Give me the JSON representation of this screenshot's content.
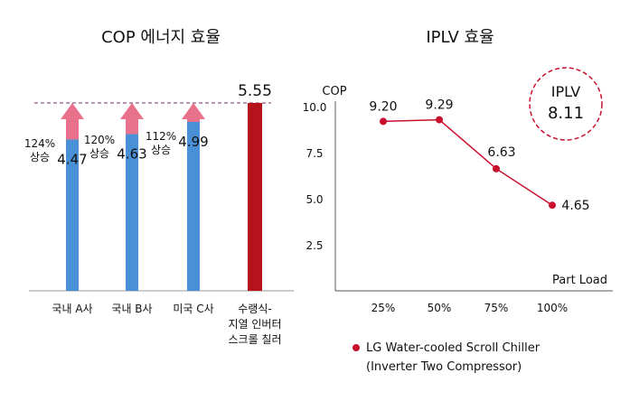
{
  "chart_data": [
    {
      "type": "bar",
      "title": "COP 에너지 효율",
      "categories": [
        "국내 A사",
        "국내 B사",
        "미국 C사",
        "수랭식-\n지열 인버터\n스크롤 칠러"
      ],
      "values": [
        4.47,
        4.63,
        4.99,
        5.55
      ],
      "value_labels": [
        "4.47",
        "4.63",
        "4.99",
        "5.55"
      ],
      "improvement_labels": [
        "124%\n상승",
        "120%\n상승",
        "112%\n상승"
      ],
      "reference_value": 5.55,
      "ylim": [
        0,
        5.55
      ],
      "colors": {
        "base": "#4a90d6",
        "gain": "#e8728c",
        "highlight": "#b5121b",
        "ref_line": "#7a2a6a"
      }
    },
    {
      "type": "line",
      "title": "IPLV 효율",
      "ylabel": "COP",
      "xlabel": "Part Load",
      "categories": [
        "25%",
        "50%",
        "75%",
        "100%"
      ],
      "yticks": [
        "10.0",
        "7.5",
        "5.0",
        "2.5"
      ],
      "ytick_values": [
        10.0,
        7.5,
        5.0,
        2.5
      ],
      "ylim": [
        0,
        10.3
      ],
      "series": [
        {
          "name": "LG Water-cooled Scroll Chiller\n(Inverter Two Compressor)",
          "values": [
            9.2,
            9.29,
            6.63,
            4.65
          ],
          "labels": [
            "9.20",
            "9.29",
            "6.63",
            "4.65"
          ]
        }
      ],
      "badge": {
        "label": "IPLV",
        "value": "8.11"
      },
      "legend_position": "bottom",
      "colors": {
        "line": "#c8102e",
        "axis": "#555555"
      }
    }
  ]
}
